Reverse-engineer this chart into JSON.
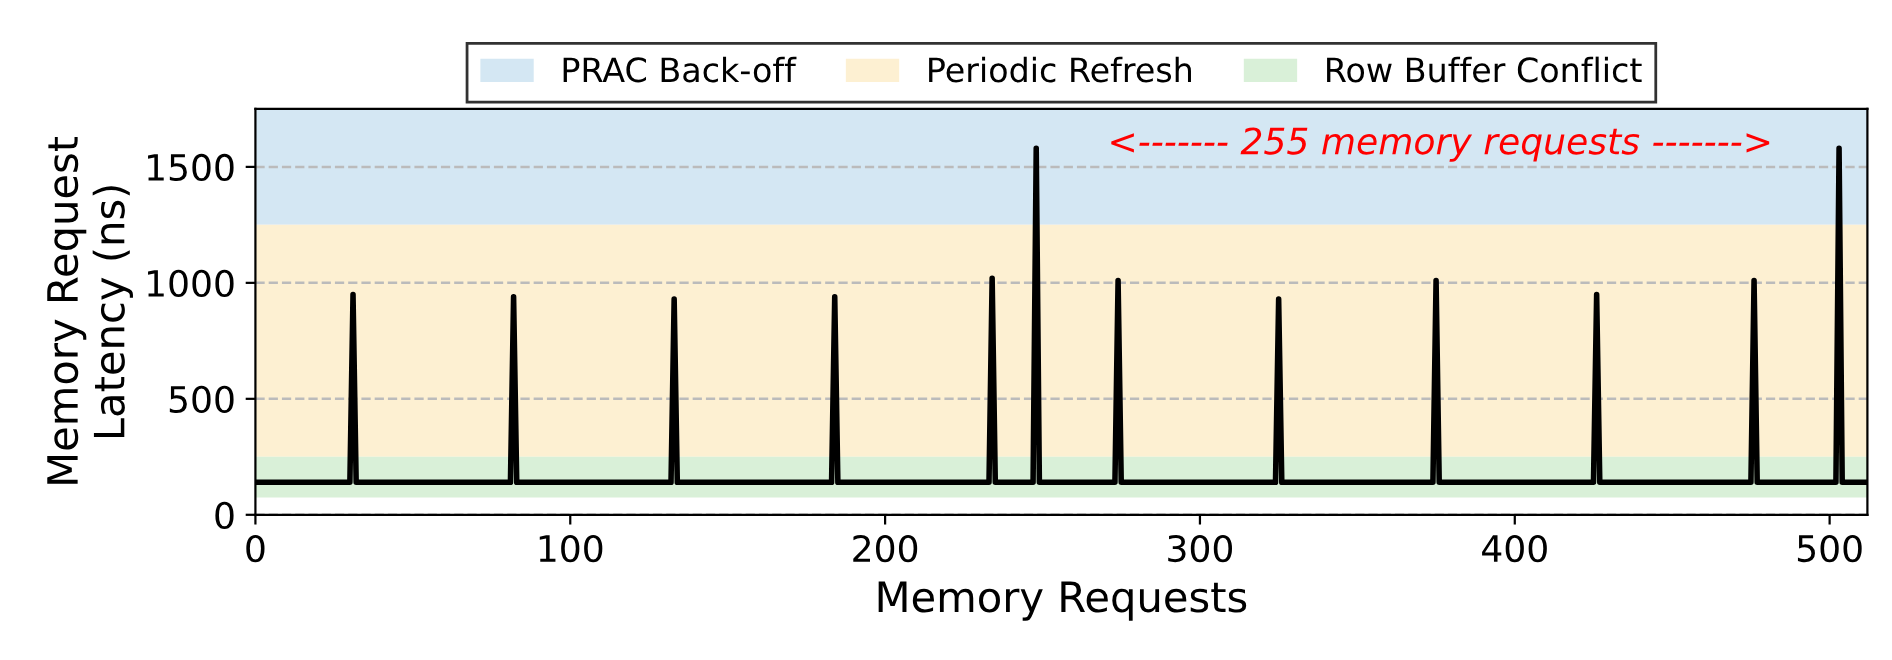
{
  "chart_data": {
    "type": "line",
    "xlabel": "Memory Requests",
    "ylabel": "Memory Request\nLatency (ns)",
    "x": [
      0,
      30,
      31,
      32,
      60,
      81,
      82,
      83,
      110,
      132,
      133,
      134,
      160,
      183,
      184,
      185,
      210,
      233,
      234,
      235,
      247,
      248,
      249,
      273,
      274,
      275,
      300,
      324,
      325,
      326,
      350,
      374,
      375,
      376,
      400,
      425,
      426,
      427,
      450,
      475,
      476,
      477,
      502,
      503,
      504,
      511
    ],
    "series": [
      {
        "color": "#000000",
        "values": [
          140,
          140,
          950,
          140,
          140,
          140,
          940,
          140,
          140,
          140,
          930,
          140,
          140,
          140,
          940,
          140,
          140,
          140,
          1020,
          140,
          140,
          1580,
          140,
          140,
          1010,
          140,
          140,
          140,
          930,
          140,
          140,
          140,
          1010,
          140,
          140,
          140,
          950,
          140,
          140,
          140,
          1010,
          140,
          140,
          1580,
          140,
          140
        ]
      }
    ],
    "xlim": [
      0,
      512
    ],
    "ylim": [
      0,
      1750
    ],
    "xticks": [
      0,
      100,
      200,
      300,
      400,
      500
    ],
    "yticks": [
      0,
      500,
      1000,
      1500
    ],
    "bands": [
      {
        "axis": "y",
        "from": 1250,
        "to": 1750,
        "label": "PRAC Back-off",
        "color": "#d4e7f3"
      },
      {
        "axis": "y",
        "from": 250,
        "to": 1250,
        "label": "Periodic Refresh",
        "color": "#fdf0d2"
      },
      {
        "axis": "y",
        "from": 75,
        "to": 250,
        "label": "Row Buffer Conflict",
        "color": "#d9f0d8"
      }
    ],
    "annotations": [
      "<------- 255 memory requests ------->"
    ],
    "grid": "y",
    "legend": "top",
    "marker": "none",
    "line_style": "solid"
  }
}
